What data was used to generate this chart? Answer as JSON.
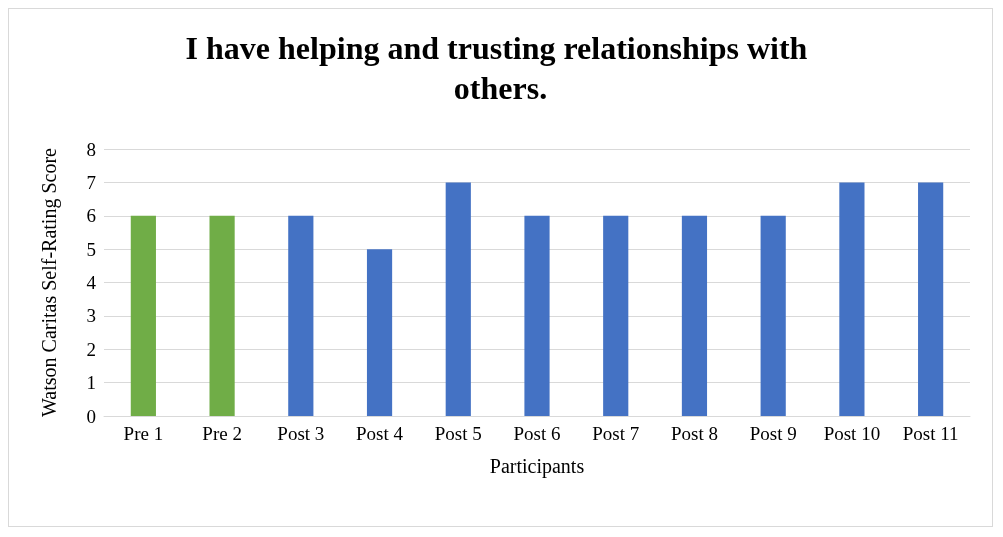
{
  "chart_data": {
    "type": "bar",
    "title": "I have helping and trusting relationships with others.",
    "xlabel": "Participants",
    "ylabel": "Watson Caritas Self-Rating Score",
    "categories": [
      "Pre 1",
      "Pre 2",
      "Post 3",
      "Post 4",
      "Post 5",
      "Post 6",
      "Post 7",
      "Post 8",
      "Post 9",
      "Post 10",
      "Post 11"
    ],
    "values": [
      6,
      6,
      6,
      5,
      7,
      6,
      6,
      6,
      6,
      7,
      7
    ],
    "colors": [
      "#70ad47",
      "#70ad47",
      "#4472c4",
      "#4472c4",
      "#4472c4",
      "#4472c4",
      "#4472c4",
      "#4472c4",
      "#4472c4",
      "#4472c4",
      "#4472c4"
    ],
    "ylim": [
      0,
      8
    ],
    "yticks": [
      0,
      1,
      2,
      3,
      4,
      5,
      6,
      7,
      8
    ],
    "grid": "y"
  }
}
